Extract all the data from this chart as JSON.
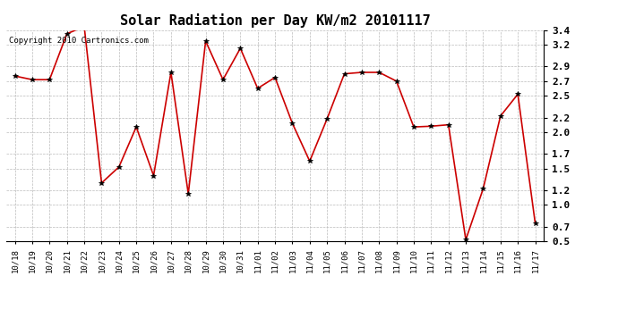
{
  "title": "Solar Radiation per Day KW/m2 20101117",
  "copyright": "Copyright 2010 Cartronics.com",
  "x_labels": [
    "10/18",
    "10/19",
    "10/20",
    "10/21",
    "10/22",
    "10/23",
    "10/24",
    "10/25",
    "10/26",
    "10/27",
    "10/28",
    "10/29",
    "10/30",
    "10/31",
    "11/01",
    "11/02",
    "11/03",
    "11/04",
    "11/05",
    "11/06",
    "11/07",
    "11/08",
    "11/09",
    "11/10",
    "11/11",
    "11/12",
    "11/13",
    "11/14",
    "11/15",
    "11/16",
    "11/17"
  ],
  "y_values": [
    2.77,
    2.72,
    2.72,
    3.35,
    3.45,
    1.3,
    1.52,
    2.07,
    1.4,
    2.82,
    1.15,
    3.25,
    2.72,
    3.15,
    2.6,
    2.75,
    2.12,
    1.6,
    2.18,
    2.8,
    2.82,
    2.82,
    2.7,
    2.07,
    2.08,
    2.1,
    0.52,
    1.22,
    2.22,
    2.52,
    0.75
  ],
  "line_color": "#cc0000",
  "marker_color": "#000000",
  "grid_color": "#bbbbbb",
  "bg_color": "#ffffff",
  "ylim": [
    0.5,
    3.4
  ],
  "yticks": [
    0.5,
    0.7,
    1.0,
    1.2,
    1.5,
    1.7,
    2.0,
    2.2,
    2.5,
    2.7,
    2.9,
    3.2,
    3.4
  ],
  "title_fontsize": 11,
  "copyright_fontsize": 6.5,
  "tick_fontsize": 6.5,
  "ytick_fontsize": 8
}
